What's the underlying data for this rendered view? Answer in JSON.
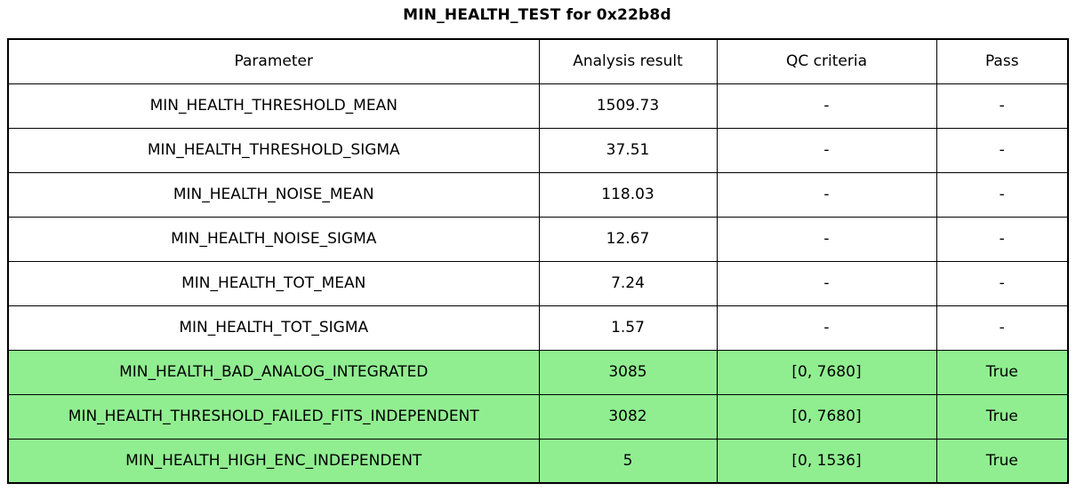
{
  "title": "MIN_HEALTH_TEST for 0x22b8d",
  "colors": {
    "highlight_green": "#90ee90",
    "border": "#000000",
    "background": "#ffffff",
    "text": "#000000"
  },
  "table": {
    "columns": [
      "Parameter",
      "Analysis result",
      "QC criteria",
      "Pass"
    ],
    "rows": [
      {
        "parameter": "MIN_HEALTH_THRESHOLD_MEAN",
        "result": "1509.73",
        "qc": "-",
        "pass": "-",
        "highlight": false
      },
      {
        "parameter": "MIN_HEALTH_THRESHOLD_SIGMA",
        "result": "37.51",
        "qc": "-",
        "pass": "-",
        "highlight": false
      },
      {
        "parameter": "MIN_HEALTH_NOISE_MEAN",
        "result": "118.03",
        "qc": "-",
        "pass": "-",
        "highlight": false
      },
      {
        "parameter": "MIN_HEALTH_NOISE_SIGMA",
        "result": "12.67",
        "qc": "-",
        "pass": "-",
        "highlight": false
      },
      {
        "parameter": "MIN_HEALTH_TOT_MEAN",
        "result": "7.24",
        "qc": "-",
        "pass": "-",
        "highlight": false
      },
      {
        "parameter": "MIN_HEALTH_TOT_SIGMA",
        "result": "1.57",
        "qc": "-",
        "pass": "-",
        "highlight": false
      },
      {
        "parameter": "MIN_HEALTH_BAD_ANALOG_INTEGRATED",
        "result": "3085",
        "qc": "[0, 7680]",
        "pass": "True",
        "highlight": true
      },
      {
        "parameter": "MIN_HEALTH_THRESHOLD_FAILED_FITS_INDEPENDENT",
        "result": "3082",
        "qc": "[0, 7680]",
        "pass": "True",
        "highlight": true
      },
      {
        "parameter": "MIN_HEALTH_HIGH_ENC_INDEPENDENT",
        "result": "5",
        "qc": "[0, 1536]",
        "pass": "True",
        "highlight": true
      }
    ]
  },
  "chart_data": {
    "type": "table",
    "title": "MIN_HEALTH_TEST for 0x22b8d",
    "columns": [
      "Parameter",
      "Analysis result",
      "QC criteria",
      "Pass"
    ],
    "rows": [
      [
        "MIN_HEALTH_THRESHOLD_MEAN",
        "1509.73",
        "-",
        "-"
      ],
      [
        "MIN_HEALTH_THRESHOLD_SIGMA",
        "37.51",
        "-",
        "-"
      ],
      [
        "MIN_HEALTH_NOISE_MEAN",
        "118.03",
        "-",
        "-"
      ],
      [
        "MIN_HEALTH_NOISE_SIGMA",
        "12.67",
        "-",
        "-"
      ],
      [
        "MIN_HEALTH_TOT_MEAN",
        "7.24",
        "-",
        "-"
      ],
      [
        "MIN_HEALTH_TOT_SIGMA",
        "1.57",
        "-",
        "-"
      ],
      [
        "MIN_HEALTH_BAD_ANALOG_INTEGRATED",
        "3085",
        "[0, 7680]",
        "True"
      ],
      [
        "MIN_HEALTH_THRESHOLD_FAILED_FITS_INDEPENDENT",
        "3082",
        "[0, 7680]",
        "True"
      ],
      [
        "MIN_HEALTH_HIGH_ENC_INDEPENDENT",
        "5",
        "[0, 1536]",
        "True"
      ]
    ],
    "highlighted_rows": [
      6,
      7,
      8
    ],
    "layout": {
      "grid": true,
      "header_row": true,
      "highlight_color": "#90ee90"
    }
  }
}
